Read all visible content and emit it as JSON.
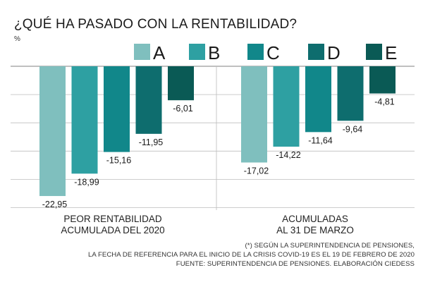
{
  "title": "¿QUÉ HA PASADO CON LA RENTABILIDAD?",
  "unit": "%",
  "colors": {
    "A": "#7fbfbe",
    "B": "#2ea0a2",
    "C": "#11878a",
    "D": "#0e6d6e",
    "E": "#0a5a55",
    "grid": "#bdbdbd"
  },
  "chart_data": {
    "type": "bar",
    "categories": [
      "PEOR RENTABILIDAD ACUMULADA DEL 2020",
      "ACUMULADAS AL 31 DE MARZO"
    ],
    "category_lines": [
      [
        "PEOR RENTABILIDAD",
        "ACUMULADA DEL 2020"
      ],
      [
        "ACUMULADAS",
        "AL 31 DE MARZO"
      ]
    ],
    "series": [
      {
        "name": "A",
        "values": [
          -22.95,
          -17.02
        ],
        "labels": [
          "-22,95",
          "-17,02"
        ]
      },
      {
        "name": "B",
        "values": [
          -18.99,
          -14.22
        ],
        "labels": [
          "-18,99",
          "-14,22"
        ]
      },
      {
        "name": "C",
        "values": [
          -15.16,
          -11.64
        ],
        "labels": [
          "-15,16",
          "-11,64"
        ]
      },
      {
        "name": "D",
        "values": [
          -11.95,
          -9.64
        ],
        "labels": [
          "-11,95",
          "-9,64"
        ]
      },
      {
        "name": "E",
        "values": [
          -6.01,
          -4.81
        ],
        "labels": [
          "-6,01",
          "-4,81"
        ]
      }
    ],
    "ylim": [
      -25,
      0
    ],
    "grid": true,
    "legend_position": "top-right"
  },
  "footnotes": [
    "(*) SEGÚN LA SUPERINTENDENCIA DE PENSIONES,",
    "LA FECHA DE REFERENCIA PARA EL INICIO DE LA CRISIS COVID-19 ES EL 19 DE FEBRERO DE 2020",
    "FUENTE: SUPERINTENDENCIA DE PENSIONES. ELABORACIÓN CIEDESS"
  ]
}
